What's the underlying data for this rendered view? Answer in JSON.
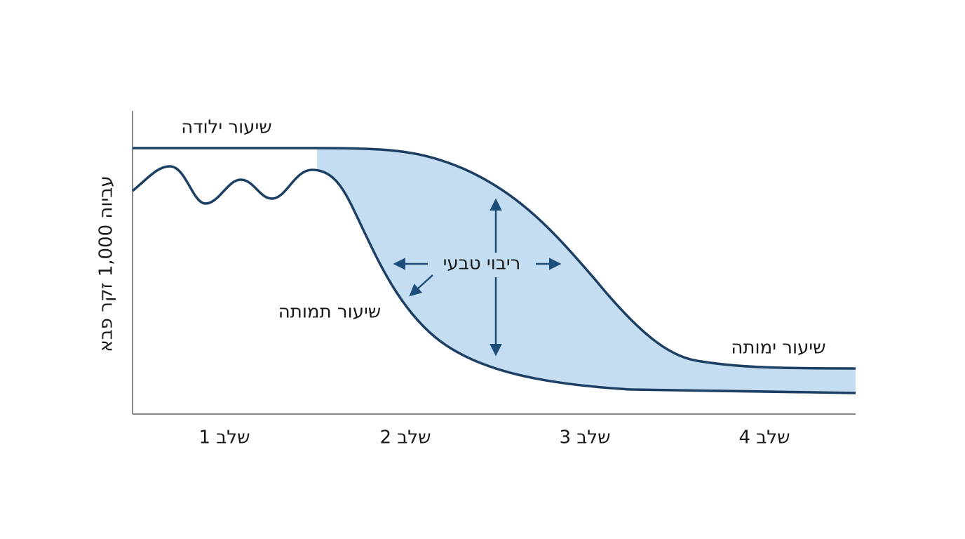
{
  "labels": {
    "birth_rate": "שיעור ילודה",
    "death_rate": "שיעור תמותה",
    "natural_increase": "ריבוי טבעי",
    "death_rate_right": "שיעור ימותה",
    "y_axis": "עביוה 1,000 זקר פבא"
  },
  "stages": [
    "שלב 1",
    "שלב 2",
    "שלב 3",
    "שלב 4"
  ]
}
